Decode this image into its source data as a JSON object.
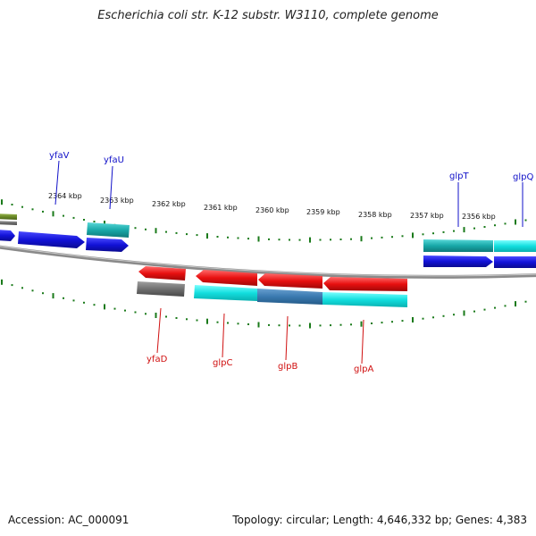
{
  "title": "Escherichia coli str. K-12 substr. W3110, complete genome",
  "footer": {
    "accession": "Accession: AC_000091",
    "summary": "Topology: circular; Length: 4,646,332 bp; Genes: 4,383"
  },
  "scale_labels": [
    "2364 kbp",
    "2363 kbp",
    "2362 kbp",
    "2361 kbp",
    "2360 kbp",
    "2359 kbp",
    "2358 kbp",
    "2357 kbp",
    "2356 kbp"
  ],
  "forward_labels": [
    "yfaV",
    "yfaU",
    "glpT",
    "glpQ"
  ],
  "reverse_labels": [
    "yfaD",
    "glpC",
    "glpB",
    "glpA"
  ],
  "colors": {
    "forward_label": "#1010c8",
    "reverse_label": "#d01010",
    "tick": "#1a7a1a",
    "backbone": "#8c8c8c",
    "cds_blue": "#1212d8",
    "cds_cyan": "#12dede",
    "cds_teal": "#18a8a8",
    "cds_red": "#e81010",
    "cds_gray": "#707070",
    "cds_steel": "#3a7ab0",
    "cds_olive": "#6a8a28"
  }
}
